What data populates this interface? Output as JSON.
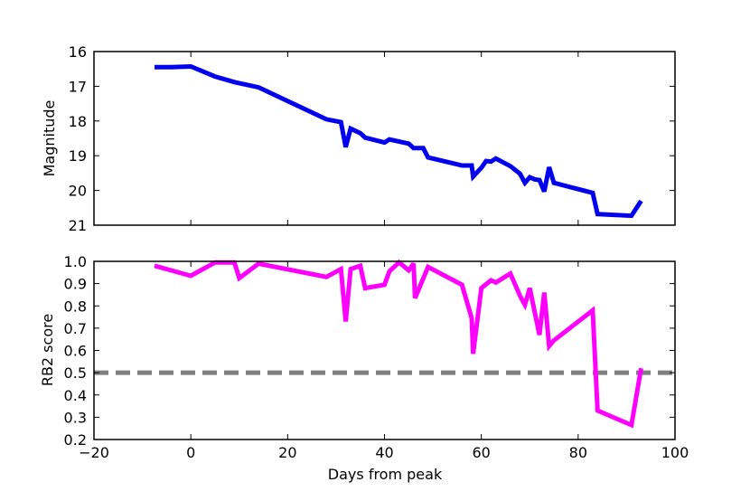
{
  "chart_data": [
    {
      "type": "line",
      "panel": "top",
      "title": "",
      "xlabel": "",
      "ylabel": "Magnitude",
      "xlim": [
        -20,
        100
      ],
      "ylim": [
        21,
        16
      ],
      "y_inverted": true,
      "x_ticks": [
        -20,
        0,
        20,
        40,
        60,
        80,
        100
      ],
      "x_tick_labels_shown": false,
      "y_ticks": [
        16,
        17,
        18,
        19,
        20,
        21
      ],
      "y_tick_labels": [
        "16",
        "17",
        "18",
        "19",
        "20",
        "21"
      ],
      "grid": false,
      "series": [
        {
          "name": "magnitude",
          "color": "#0000ee",
          "x": [
            -7.5,
            -4,
            0,
            5,
            9,
            14,
            28,
            31,
            32,
            33,
            35,
            36,
            40,
            41,
            45,
            46,
            48,
            49,
            56,
            58,
            58.3,
            60,
            61,
            62,
            63,
            66,
            68,
            69,
            70,
            71,
            72,
            73,
            74,
            75,
            83,
            84,
            91,
            93
          ],
          "y": [
            16.45,
            16.45,
            16.43,
            16.72,
            16.88,
            17.03,
            17.95,
            18.03,
            18.75,
            18.22,
            18.35,
            18.48,
            18.62,
            18.53,
            18.65,
            18.78,
            18.78,
            19.05,
            19.28,
            19.28,
            19.6,
            19.35,
            19.15,
            19.17,
            19.08,
            19.3,
            19.52,
            19.78,
            19.62,
            19.68,
            19.7,
            20.03,
            19.33,
            19.78,
            20.07,
            20.68,
            20.73,
            20.3
          ]
        }
      ]
    },
    {
      "type": "line",
      "panel": "bottom",
      "title": "",
      "xlabel": "Days from peak",
      "ylabel": "RB2 score",
      "xlim": [
        -20,
        100
      ],
      "ylim": [
        0.2,
        1.0
      ],
      "x_ticks": [
        -20,
        0,
        20,
        40,
        60,
        80,
        100
      ],
      "x_tick_labels": [
        "−20",
        "0",
        "20",
        "40",
        "60",
        "80",
        "100"
      ],
      "y_ticks": [
        0.2,
        0.3,
        0.4,
        0.5,
        0.6,
        0.7,
        0.8,
        0.9,
        1.0
      ],
      "y_tick_labels": [
        "0.2",
        "0.3",
        "0.4",
        "0.5",
        "0.6",
        "0.7",
        "0.8",
        "0.9",
        "1.0"
      ],
      "grid": false,
      "series": [
        {
          "name": "rb2",
          "color": "#ff00ff",
          "x": [
            -7.5,
            0,
            5,
            9,
            10,
            14,
            28,
            31,
            32,
            33,
            35,
            36,
            40,
            41,
            43,
            45,
            46,
            46.3,
            49,
            56,
            58,
            58.3,
            60,
            62,
            63,
            66,
            68,
            69,
            70,
            71,
            72,
            73,
            74,
            75,
            83,
            84,
            91,
            93
          ],
          "y": [
            0.98,
            0.935,
            0.995,
            0.995,
            0.925,
            0.99,
            0.93,
            0.965,
            0.73,
            0.965,
            0.98,
            0.88,
            0.895,
            0.955,
            0.995,
            0.96,
            0.99,
            0.835,
            0.975,
            0.895,
            0.745,
            0.585,
            0.88,
            0.915,
            0.905,
            0.945,
            0.845,
            0.805,
            0.88,
            0.775,
            0.67,
            0.86,
            0.62,
            0.645,
            0.78,
            0.33,
            0.265,
            0.52
          ]
        }
      ],
      "threshold": {
        "y": 0.5,
        "color": "#808080",
        "style": "dashed"
      }
    }
  ]
}
